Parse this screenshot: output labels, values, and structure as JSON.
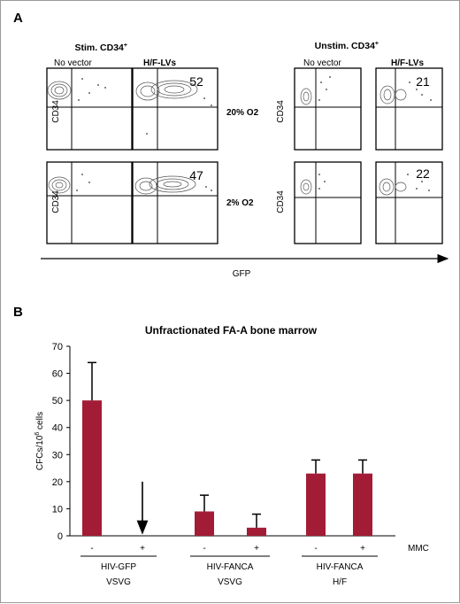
{
  "panel_a": {
    "letter": "A",
    "left_header": {
      "main": "Stim. CD34",
      "sup": "+"
    },
    "right_header": {
      "main": "Unstim. CD34",
      "sup": "+"
    },
    "col_no_vector": "No vector",
    "col_hf_lvs": "H/F-LVs",
    "y_axis_label": "CD34",
    "x_axis_label": "GFP",
    "condition_20": "20% O2",
    "condition_2": "2% O2",
    "plots": [
      {
        "group": "stim",
        "row": "20% O2",
        "vector": "No vector",
        "percent": null
      },
      {
        "group": "stim",
        "row": "20% O2",
        "vector": "H/F-LVs",
        "percent": "52"
      },
      {
        "group": "stim",
        "row": "2% O2",
        "vector": "No vector",
        "percent": null
      },
      {
        "group": "stim",
        "row": "2% O2",
        "vector": "H/F-LVs",
        "percent": "47"
      },
      {
        "group": "unstim",
        "row": "top",
        "vector": "No vector",
        "percent": null
      },
      {
        "group": "unstim",
        "row": "top",
        "vector": "H/F-LVs",
        "percent": "21"
      },
      {
        "group": "unstim",
        "row": "bottom",
        "vector": "No vector",
        "percent": null
      },
      {
        "group": "unstim",
        "row": "bottom",
        "vector": "H/F-LVs",
        "percent": "22"
      }
    ]
  },
  "panel_b": {
    "letter": "B",
    "ylabel_main": "CFCs/10",
    "ylabel_sup": "6",
    "ylabel_tail": " cells",
    "mmc_label": "MMC",
    "bar_color": "#a31c35",
    "chart_data": {
      "type": "bar",
      "title": "Unfractionated FA-A bone marrow",
      "ylabel": "CFCs/10^6 cells",
      "ylim": [
        0,
        70
      ],
      "yticks": [
        0,
        10,
        20,
        30,
        40,
        50,
        60,
        70
      ],
      "mmc_signs": [
        "-",
        "+",
        "-",
        "+",
        "-",
        "+"
      ],
      "groups": [
        {
          "line1": "HIV-GFP",
          "line2": "VSVG"
        },
        {
          "line1": "HIV-FANCA",
          "line2": "VSVG"
        },
        {
          "line1": "HIV-FANCA",
          "line2": "H/F"
        }
      ],
      "values": [
        50,
        0,
        9,
        3,
        23,
        23
      ],
      "errors": [
        14,
        null,
        6,
        5,
        5,
        5
      ],
      "zero_arrow_from": 20
    }
  }
}
